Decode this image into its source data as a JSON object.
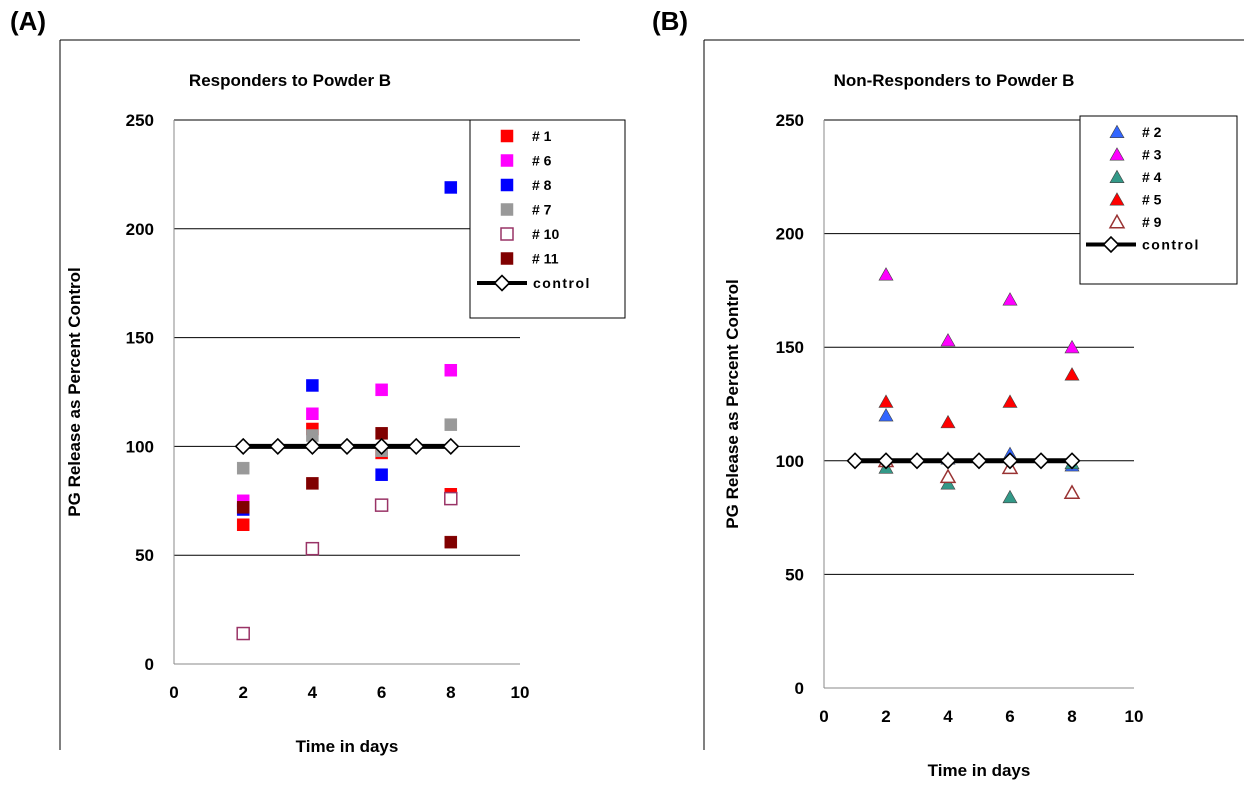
{
  "panels": [
    {
      "letter": "(A)"
    },
    {
      "letter": "(B)"
    }
  ],
  "chart_data": [
    {
      "type": "scatter",
      "title": "Responders to Powder B",
      "xlabel": "Time in days",
      "ylabel": "PG  Release as Percent Control",
      "xlim": [
        0,
        10
      ],
      "ylim": [
        0,
        250
      ],
      "xticks": [
        0,
        2,
        4,
        6,
        8,
        10
      ],
      "yticks": [
        0,
        50,
        100,
        150,
        200,
        250
      ],
      "grid": "horizontal",
      "legend_position": "top-right",
      "series": [
        {
          "name": "# 1",
          "marker": "square",
          "filled": true,
          "color": "#ff0000",
          "points": [
            [
              2,
              64
            ],
            [
              4,
              108
            ],
            [
              6,
              97
            ],
            [
              8,
              78
            ]
          ]
        },
        {
          "name": "# 6",
          "marker": "square",
          "filled": true,
          "color": "#ff00ff",
          "points": [
            [
              2,
              75
            ],
            [
              4,
              115
            ],
            [
              6,
              126
            ],
            [
              8,
              135
            ]
          ]
        },
        {
          "name": "# 8",
          "marker": "square",
          "filled": true,
          "color": "#0000ff",
          "points": [
            [
              2,
              71
            ],
            [
              4,
              128
            ],
            [
              6,
              87
            ],
            [
              8,
              219
            ]
          ]
        },
        {
          "name": "# 7",
          "marker": "square",
          "filled": true,
          "color": "#999999",
          "points": [
            [
              2,
              90
            ],
            [
              4,
              105
            ],
            [
              6,
              98
            ],
            [
              8,
              110
            ]
          ]
        },
        {
          "name": "# 10",
          "marker": "square",
          "filled": false,
          "color": "#993366",
          "points": [
            [
              2,
              14
            ],
            [
              4,
              53
            ],
            [
              6,
              73
            ],
            [
              8,
              76
            ]
          ]
        },
        {
          "name": "# 11",
          "marker": "square",
          "filled": true,
          "color": "#800000",
          "points": [
            [
              2,
              72
            ],
            [
              4,
              83
            ],
            [
              6,
              106
            ],
            [
              8,
              56
            ]
          ]
        },
        {
          "name": "control",
          "marker": "diamond",
          "filled": false,
          "color": "#000000",
          "line": true,
          "points": [
            [
              2,
              100
            ],
            [
              3,
              100
            ],
            [
              4,
              100
            ],
            [
              5,
              100
            ],
            [
              6,
              100
            ],
            [
              7,
              100
            ],
            [
              8,
              100
            ]
          ]
        }
      ]
    },
    {
      "type": "scatter",
      "title": "Non-Responders to Powder B",
      "xlabel": "Time in days",
      "ylabel": "PG  Release as Percent Control",
      "xlim": [
        0,
        10
      ],
      "ylim": [
        0,
        250
      ],
      "xticks": [
        0,
        2,
        4,
        6,
        8,
        10
      ],
      "yticks": [
        0,
        50,
        100,
        150,
        200,
        250
      ],
      "grid": "horizontal",
      "legend_position": "top-right",
      "series": [
        {
          "name": "# 2",
          "marker": "triangle",
          "filled": true,
          "color": "#3366ff",
          "points": [
            [
              2,
              120
            ],
            [
              4,
              101
            ],
            [
              6,
              103
            ],
            [
              8,
              98
            ]
          ]
        },
        {
          "name": "# 3",
          "marker": "triangle",
          "filled": true,
          "color": "#ff00ff",
          "points": [
            [
              2,
              182
            ],
            [
              4,
              153
            ],
            [
              6,
              171
            ],
            [
              8,
              150
            ]
          ]
        },
        {
          "name": "# 4",
          "marker": "triangle",
          "filled": true,
          "color": "#339988",
          "points": [
            [
              2,
              97
            ],
            [
              4,
              90
            ],
            [
              6,
              84
            ],
            [
              8,
              99
            ]
          ]
        },
        {
          "name": "# 5",
          "marker": "triangle",
          "filled": true,
          "color": "#ff0000",
          "points": [
            [
              2,
              126
            ],
            [
              4,
              117
            ],
            [
              6,
              126
            ],
            [
              8,
              138
            ]
          ]
        },
        {
          "name": "# 9",
          "marker": "triangle",
          "filled": false,
          "color": "#993333",
          "points": [
            [
              2,
              100
            ],
            [
              4,
              93
            ],
            [
              6,
              97
            ],
            [
              8,
              86
            ]
          ]
        },
        {
          "name": "control",
          "marker": "diamond",
          "filled": false,
          "color": "#000000",
          "line": true,
          "points": [
            [
              1,
              100
            ],
            [
              2,
              100
            ],
            [
              3,
              100
            ],
            [
              4,
              100
            ],
            [
              5,
              100
            ],
            [
              6,
              100
            ],
            [
              7,
              100
            ],
            [
              8,
              100
            ]
          ]
        }
      ]
    }
  ]
}
